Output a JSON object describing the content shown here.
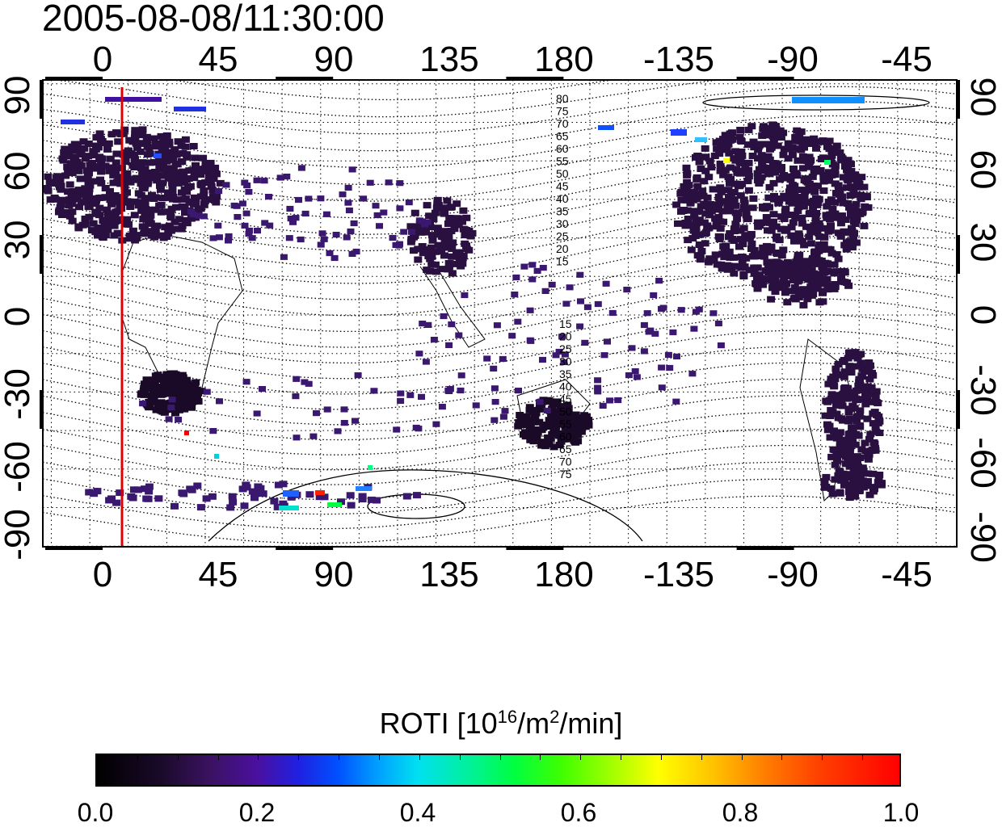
{
  "title": "2005-08-08/11:30:00",
  "axes": {
    "top_ticks": [
      "0",
      "45",
      "90",
      "135",
      "180",
      "-135",
      "-90",
      "-45"
    ],
    "bottom_ticks": [
      "0",
      "45",
      "90",
      "135",
      "180",
      "-135",
      "-90",
      "-45"
    ],
    "left_ticks": [
      "90",
      "60",
      "30",
      "0",
      "-30",
      "-60",
      "-90"
    ],
    "right_ticks": [
      "90",
      "60",
      "30",
      "0",
      "-30",
      "-60",
      "-90"
    ]
  },
  "contour_labels_north": [
    "80",
    "75",
    "70",
    "65",
    "60",
    "55",
    "50",
    "45",
    "40",
    "35",
    "30",
    "25",
    "20",
    "15"
  ],
  "contour_labels_south": [
    "15",
    "20",
    "25",
    "30",
    "35",
    "40",
    "45",
    "50",
    "55",
    "60",
    "65",
    "70",
    "75"
  ],
  "colorbar": {
    "label_main": "ROTI  [10",
    "label_sup1": "16",
    "label_mid": "/m",
    "label_sup2": "2",
    "label_end": "/min]",
    "ticks": [
      "0.0",
      "0.2",
      "0.4",
      "0.6",
      "0.8",
      "1.0"
    ],
    "range": [
      0.0,
      1.0
    ]
  },
  "colors": {
    "terminator_line": "#dd0000",
    "low_roti": "#2a1040"
  }
}
